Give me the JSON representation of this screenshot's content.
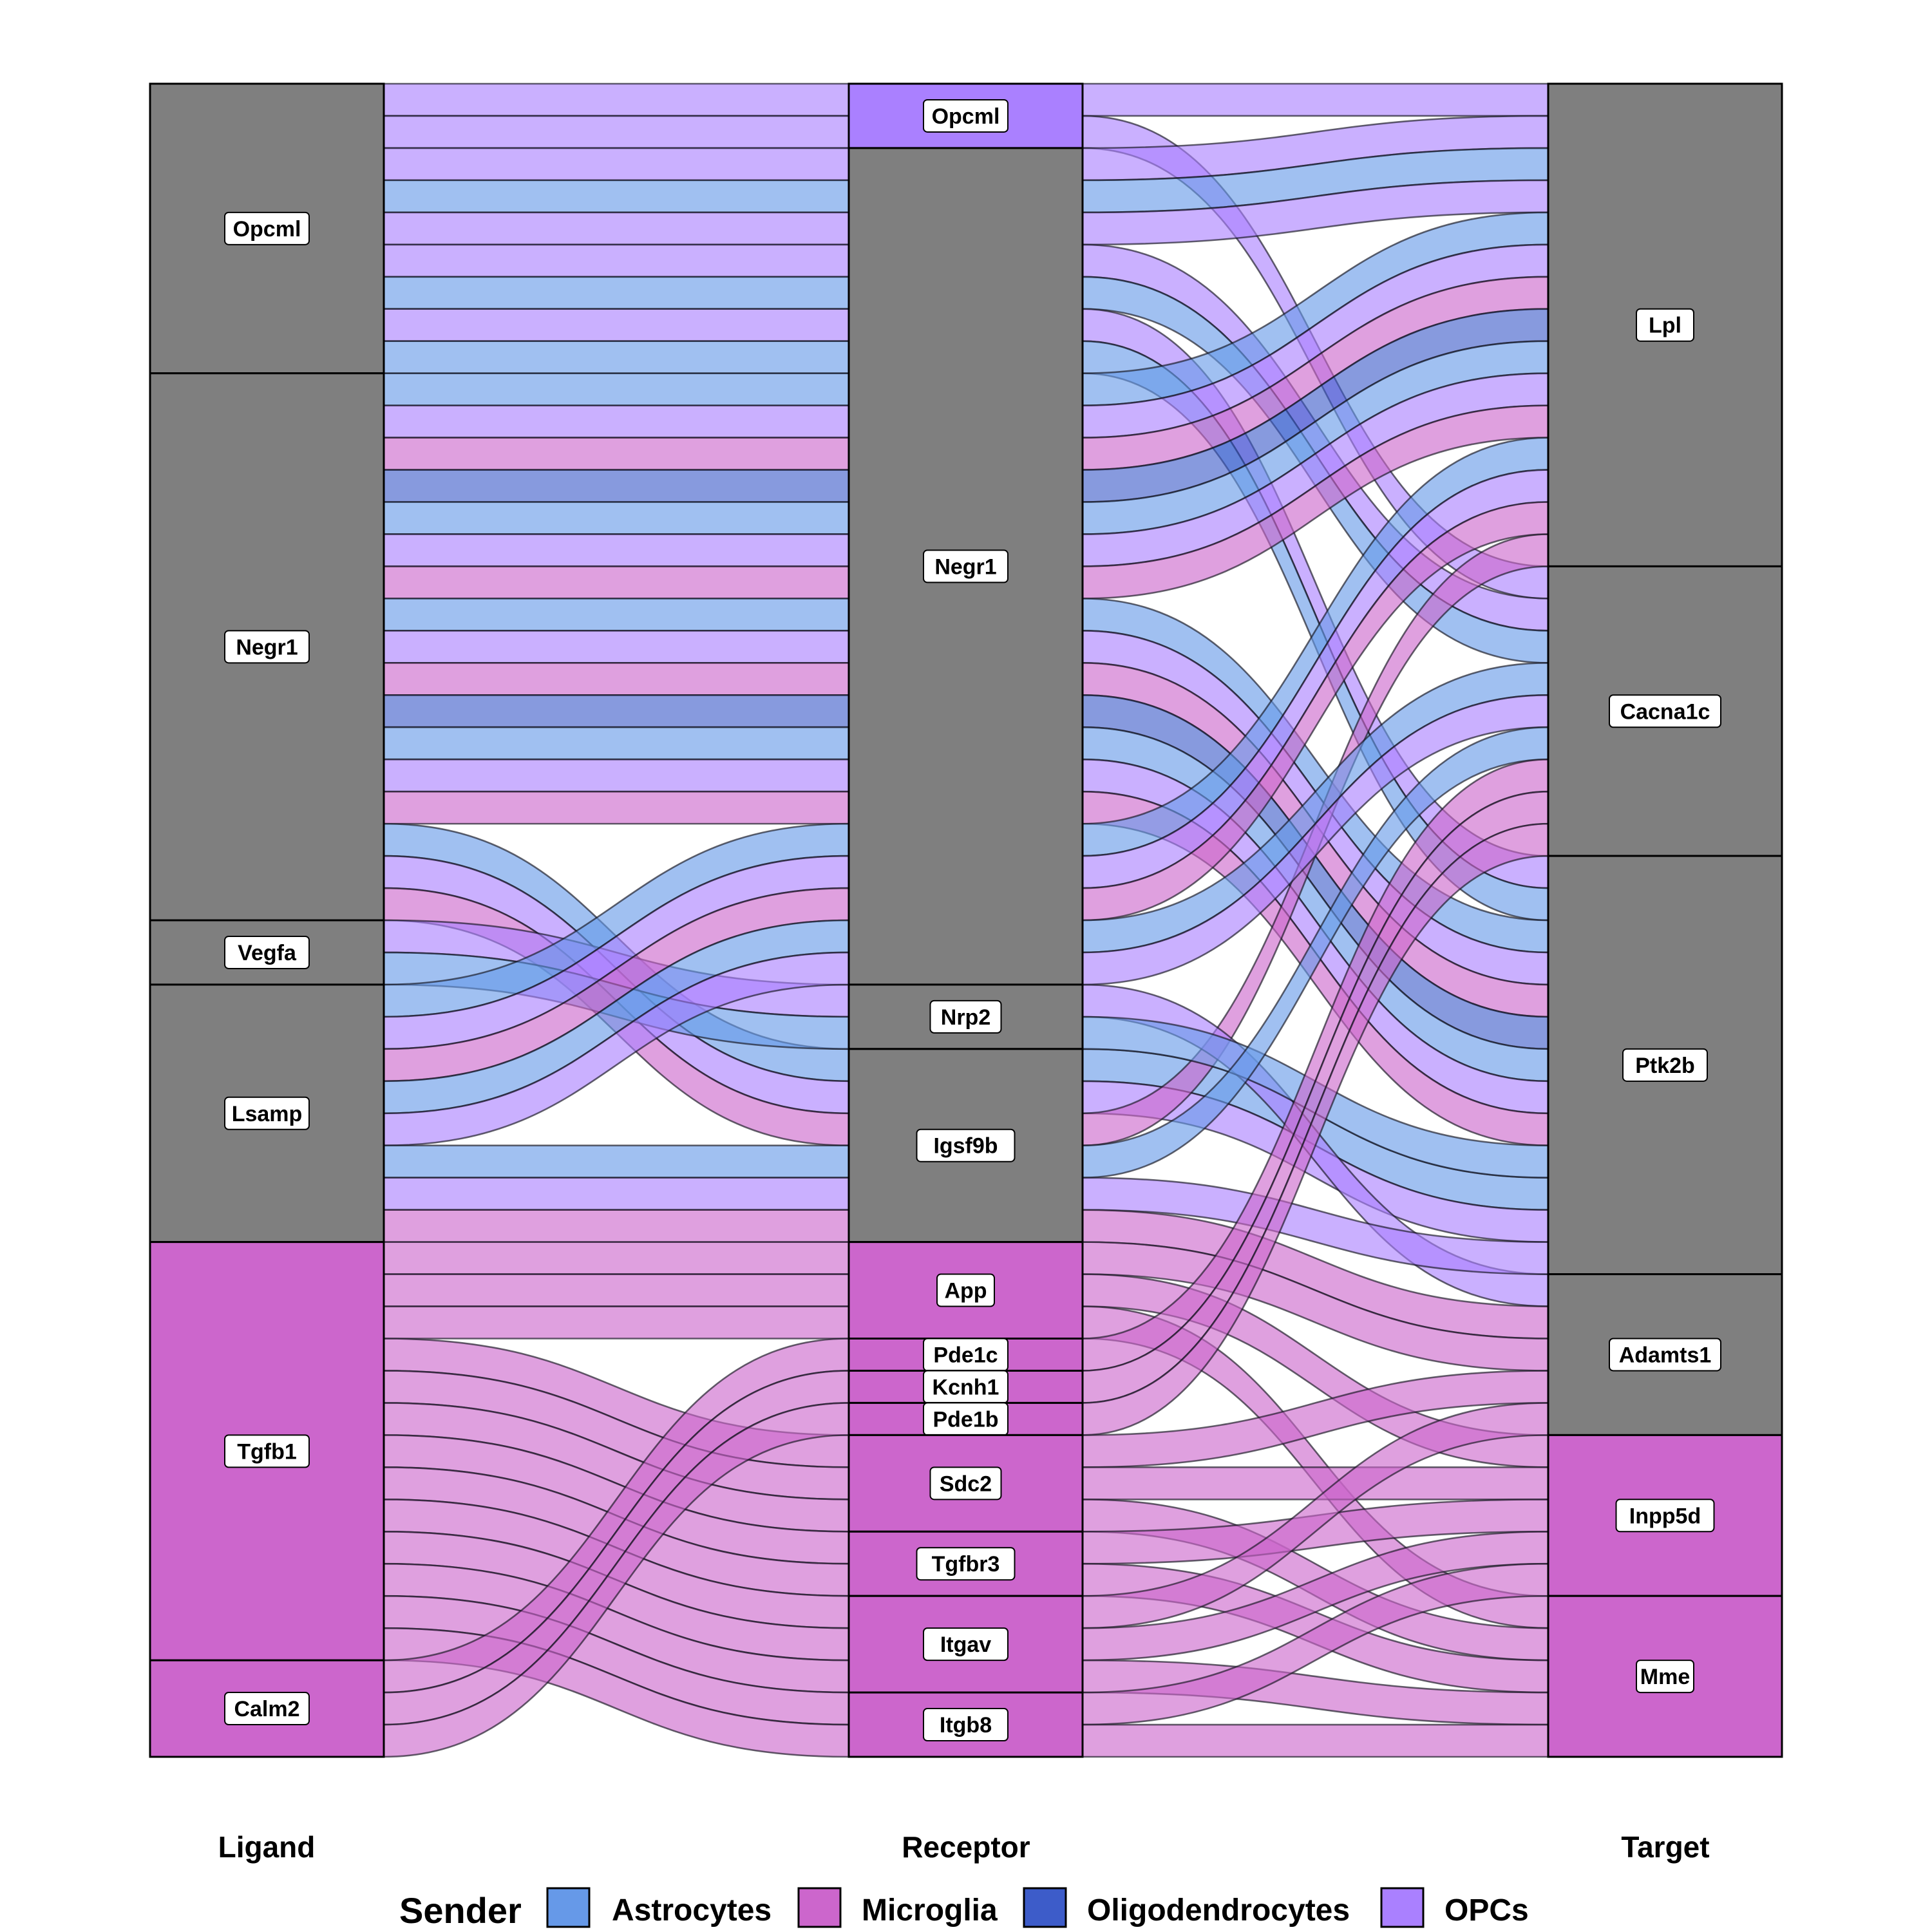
{
  "chart_data": {
    "type": "alluvial",
    "axes": [
      "Ligand",
      "Receptor",
      "Target"
    ],
    "legend": {
      "title": "Sender",
      "position": "bottom",
      "entries": [
        {
          "name": "Astrocytes",
          "color": "#6699e8"
        },
        {
          "name": "Microglia",
          "color": "#cc66cc"
        },
        {
          "name": "Oligodendrocytes",
          "color": "#3d5cc9"
        },
        {
          "name": "OPCs",
          "color": "#aa80ff"
        }
      ]
    },
    "ligands": [
      {
        "name": "Opcml",
        "color": "#7f7f7f"
      },
      {
        "name": "Negr1",
        "color": "#7f7f7f"
      },
      {
        "name": "Vegfa",
        "color": "#7f7f7f"
      },
      {
        "name": "Lsamp",
        "color": "#7f7f7f"
      },
      {
        "name": "Tgfb1",
        "color": "#cc66cc"
      },
      {
        "name": "Calm2",
        "color": "#cc66cc"
      }
    ],
    "receptors": [
      {
        "name": "Opcml",
        "color": "#aa80ff"
      },
      {
        "name": "Negr1",
        "color": "#7f7f7f"
      },
      {
        "name": "Nrp2",
        "color": "#7f7f7f"
      },
      {
        "name": "Igsf9b",
        "color": "#7f7f7f"
      },
      {
        "name": "App",
        "color": "#cc66cc"
      },
      {
        "name": "Pde1c",
        "color": "#cc66cc"
      },
      {
        "name": "Kcnh1",
        "color": "#cc66cc"
      },
      {
        "name": "Pde1b",
        "color": "#cc66cc"
      },
      {
        "name": "Sdc2",
        "color": "#cc66cc"
      },
      {
        "name": "Tgfbr3",
        "color": "#cc66cc"
      },
      {
        "name": "Itgav",
        "color": "#cc66cc"
      },
      {
        "name": "Itgb8",
        "color": "#cc66cc"
      }
    ],
    "targets": [
      {
        "name": "Lpl",
        "color": "#7f7f7f"
      },
      {
        "name": "Cacna1c",
        "color": "#7f7f7f"
      },
      {
        "name": "Ptk2b",
        "color": "#7f7f7f"
      },
      {
        "name": "Adamts1",
        "color": "#7f7f7f"
      },
      {
        "name": "Inpp5d",
        "color": "#cc66cc"
      },
      {
        "name": "Mme",
        "color": "#cc66cc"
      }
    ],
    "flows": [
      {
        "ligand": "Opcml",
        "receptor": "Opcml",
        "target": "Lpl",
        "sender": "OPCs",
        "value": 1
      },
      {
        "ligand": "Opcml",
        "receptor": "Opcml",
        "target": "Cacna1c",
        "sender": "OPCs",
        "value": 1
      },
      {
        "ligand": "Opcml",
        "receptor": "Negr1",
        "target": "Lpl",
        "sender": "OPCs",
        "value": 1
      },
      {
        "ligand": "Opcml",
        "receptor": "Negr1",
        "target": "Lpl",
        "sender": "Astrocytes",
        "value": 1
      },
      {
        "ligand": "Opcml",
        "receptor": "Negr1",
        "target": "Lpl",
        "sender": "OPCs",
        "value": 1
      },
      {
        "ligand": "Opcml",
        "receptor": "Negr1",
        "target": "Cacna1c",
        "sender": "OPCs",
        "value": 1
      },
      {
        "ligand": "Opcml",
        "receptor": "Negr1",
        "target": "Cacna1c",
        "sender": "Astrocytes",
        "value": 1
      },
      {
        "ligand": "Opcml",
        "receptor": "Negr1",
        "target": "Ptk2b",
        "sender": "OPCs",
        "value": 1
      },
      {
        "ligand": "Opcml",
        "receptor": "Negr1",
        "target": "Ptk2b",
        "sender": "Astrocytes",
        "value": 1
      },
      {
        "ligand": "Negr1",
        "receptor": "Negr1",
        "target": "Lpl",
        "sender": "Astrocytes",
        "value": 1
      },
      {
        "ligand": "Negr1",
        "receptor": "Negr1",
        "target": "Lpl",
        "sender": "OPCs",
        "value": 1
      },
      {
        "ligand": "Negr1",
        "receptor": "Negr1",
        "target": "Lpl",
        "sender": "Microglia",
        "value": 1
      },
      {
        "ligand": "Negr1",
        "receptor": "Negr1",
        "target": "Lpl",
        "sender": "Oligodendrocytes",
        "value": 1
      },
      {
        "ligand": "Negr1",
        "receptor": "Negr1",
        "target": "Lpl",
        "sender": "Astrocytes",
        "value": 1
      },
      {
        "ligand": "Negr1",
        "receptor": "Negr1",
        "target": "Lpl",
        "sender": "OPCs",
        "value": 1
      },
      {
        "ligand": "Negr1",
        "receptor": "Negr1",
        "target": "Lpl",
        "sender": "Microglia",
        "value": 1
      },
      {
        "ligand": "Negr1",
        "receptor": "Negr1",
        "target": "Ptk2b",
        "sender": "Astrocytes",
        "value": 1
      },
      {
        "ligand": "Negr1",
        "receptor": "Negr1",
        "target": "Ptk2b",
        "sender": "OPCs",
        "value": 1
      },
      {
        "ligand": "Negr1",
        "receptor": "Negr1",
        "target": "Ptk2b",
        "sender": "Microglia",
        "value": 1
      },
      {
        "ligand": "Negr1",
        "receptor": "Negr1",
        "target": "Ptk2b",
        "sender": "Oligodendrocytes",
        "value": 1
      },
      {
        "ligand": "Negr1",
        "receptor": "Negr1",
        "target": "Ptk2b",
        "sender": "Astrocytes",
        "value": 1
      },
      {
        "ligand": "Negr1",
        "receptor": "Negr1",
        "target": "Ptk2b",
        "sender": "OPCs",
        "value": 1
      },
      {
        "ligand": "Negr1",
        "receptor": "Negr1",
        "target": "Ptk2b",
        "sender": "Microglia",
        "value": 1
      },
      {
        "ligand": "Negr1",
        "receptor": "Igsf9b",
        "target": "Ptk2b",
        "sender": "Astrocytes",
        "value": 1
      },
      {
        "ligand": "Negr1",
        "receptor": "Igsf9b",
        "target": "Ptk2b",
        "sender": "OPCs",
        "value": 1
      },
      {
        "ligand": "Negr1",
        "receptor": "Igsf9b",
        "target": "Lpl",
        "sender": "Microglia",
        "value": 1
      },
      {
        "ligand": "Vegfa",
        "receptor": "Nrp2",
        "target": "Adamts1",
        "sender": "OPCs",
        "value": 1
      },
      {
        "ligand": "Vegfa",
        "receptor": "Nrp2",
        "target": "Ptk2b",
        "sender": "Astrocytes",
        "value": 1
      },
      {
        "ligand": "Lsamp",
        "receptor": "Negr1",
        "target": "Lpl",
        "sender": "Astrocytes",
        "value": 1
      },
      {
        "ligand": "Lsamp",
        "receptor": "Negr1",
        "target": "Lpl",
        "sender": "OPCs",
        "value": 1
      },
      {
        "ligand": "Lsamp",
        "receptor": "Negr1",
        "target": "Lpl",
        "sender": "Microglia",
        "value": 1
      },
      {
        "ligand": "Lsamp",
        "receptor": "Negr1",
        "target": "Cacna1c",
        "sender": "Astrocytes",
        "value": 1
      },
      {
        "ligand": "Lsamp",
        "receptor": "Negr1",
        "target": "Cacna1c",
        "sender": "OPCs",
        "value": 1
      },
      {
        "ligand": "Lsamp",
        "receptor": "Igsf9b",
        "target": "Cacna1c",
        "sender": "Astrocytes",
        "value": 1
      },
      {
        "ligand": "Lsamp",
        "receptor": "Igsf9b",
        "target": "Ptk2b",
        "sender": "OPCs",
        "value": 1
      },
      {
        "ligand": "Lsamp",
        "receptor": "Igsf9b",
        "target": "Adamts1",
        "sender": "Microglia",
        "value": 1
      },
      {
        "ligand": "Tgfb1",
        "receptor": "App",
        "target": "Adamts1",
        "sender": "Microglia",
        "value": 1
      },
      {
        "ligand": "Tgfb1",
        "receptor": "App",
        "target": "Inpp5d",
        "sender": "Microglia",
        "value": 1
      },
      {
        "ligand": "Tgfb1",
        "receptor": "App",
        "target": "Mme",
        "sender": "Microglia",
        "value": 1
      },
      {
        "ligand": "Tgfb1",
        "receptor": "Sdc2",
        "target": "Adamts1",
        "sender": "Microglia",
        "value": 1
      },
      {
        "ligand": "Tgfb1",
        "receptor": "Sdc2",
        "target": "Inpp5d",
        "sender": "Microglia",
        "value": 1
      },
      {
        "ligand": "Tgfb1",
        "receptor": "Sdc2",
        "target": "Mme",
        "sender": "Microglia",
        "value": 1
      },
      {
        "ligand": "Tgfb1",
        "receptor": "Tgfbr3",
        "target": "Inpp5d",
        "sender": "Microglia",
        "value": 1
      },
      {
        "ligand": "Tgfb1",
        "receptor": "Tgfbr3",
        "target": "Mme",
        "sender": "Microglia",
        "value": 1
      },
      {
        "ligand": "Tgfb1",
        "receptor": "Itgav",
        "target": "Adamts1",
        "sender": "Microglia",
        "value": 1
      },
      {
        "ligand": "Tgfb1",
        "receptor": "Itgav",
        "target": "Inpp5d",
        "sender": "Microglia",
        "value": 1
      },
      {
        "ligand": "Tgfb1",
        "receptor": "Itgav",
        "target": "Mme",
        "sender": "Microglia",
        "value": 1
      },
      {
        "ligand": "Tgfb1",
        "receptor": "Itgb8",
        "target": "Inpp5d",
        "sender": "Microglia",
        "value": 1
      },
      {
        "ligand": "Tgfb1",
        "receptor": "Itgb8",
        "target": "Mme",
        "sender": "Microglia",
        "value": 1
      },
      {
        "ligand": "Calm2",
        "receptor": "Pde1c",
        "target": "Cacna1c",
        "sender": "Microglia",
        "value": 1
      },
      {
        "ligand": "Calm2",
        "receptor": "Kcnh1",
        "target": "Cacna1c",
        "sender": "Microglia",
        "value": 1
      },
      {
        "ligand": "Calm2",
        "receptor": "Pde1b",
        "target": "Cacna1c",
        "sender": "Microglia",
        "value": 1
      }
    ]
  }
}
